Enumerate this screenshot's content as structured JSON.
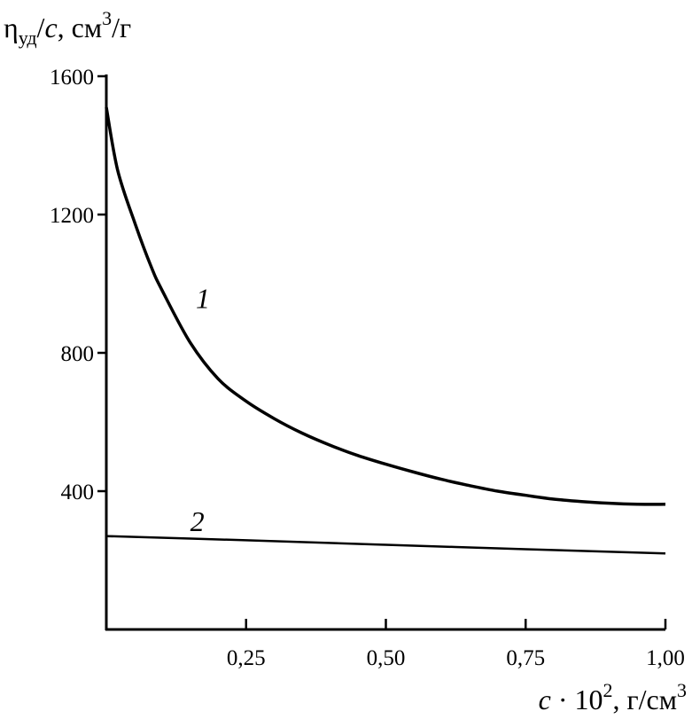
{
  "chart_data": {
    "type": "line",
    "ylabel": {
      "main": "η",
      "sub": "уд",
      "tail": "/",
      "var": "c",
      "unit": ", см",
      "sup": "3",
      "unit_end": "/г"
    },
    "xlabel": {
      "var": "c",
      "op": " · 10",
      "sup": "2",
      "unit": ", г/см",
      "sup2": "3"
    },
    "xlim": [
      0,
      1.0
    ],
    "ylim": [
      0,
      1600
    ],
    "x_ticks": [
      0.25,
      0.5,
      0.75,
      1.0
    ],
    "x_tick_labels": [
      "0,25",
      "0,50",
      "0,75",
      "1,00"
    ],
    "y_ticks": [
      400,
      800,
      1200,
      1600
    ],
    "y_tick_labels": [
      "400",
      "800",
      "1200",
      "1600"
    ],
    "grid": false,
    "legend": "none",
    "series": [
      {
        "label": "1",
        "label_at": [
          0.16,
          930
        ],
        "x": [
          0.0,
          0.02,
          0.05,
          0.08,
          0.1,
          0.15,
          0.2,
          0.25,
          0.3,
          0.35,
          0.4,
          0.45,
          0.5,
          0.55,
          0.6,
          0.65,
          0.7,
          0.75,
          0.8,
          0.85,
          0.9,
          0.95,
          1.0
        ],
        "values": [
          1510,
          1330,
          1180,
          1050,
          980,
          830,
          725,
          660,
          610,
          568,
          533,
          503,
          478,
          455,
          434,
          416,
          400,
          388,
          377,
          370,
          365,
          362,
          362
        ]
      },
      {
        "label": "2",
        "label_at": [
          0.15,
          285
        ],
        "x": [
          0.0,
          0.25,
          0.5,
          0.75,
          1.0
        ],
        "values": [
          270,
          258,
          245,
          232,
          220
        ]
      }
    ]
  }
}
